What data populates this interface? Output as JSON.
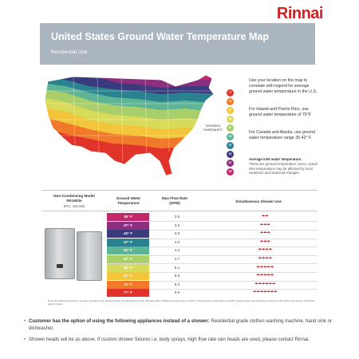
{
  "brand": "Rinnai",
  "header": {
    "title": "United States Ground Water Temperature Map",
    "subtitle": "Residential Use"
  },
  "map": {
    "legend_label": "DEGREES FAHRENHEIT",
    "legend": [
      {
        "value": "77",
        "color": "#e0342a"
      },
      {
        "value": "72",
        "color": "#f07a2a"
      },
      {
        "value": "67",
        "color": "#f2c53a"
      },
      {
        "value": "62",
        "color": "#d8db5a"
      },
      {
        "value": "57",
        "color": "#a8cf6a"
      },
      {
        "value": "52",
        "color": "#5db596"
      },
      {
        "value": "47",
        "color": "#2a8290"
      },
      {
        "value": "42",
        "color": "#3a3b7e"
      },
      {
        "value": "37",
        "color": "#8c2f7e"
      },
      {
        "value": "35",
        "color": "#c0286a"
      }
    ]
  },
  "info": {
    "p1": "Use your location on the map to correlate with legend for average ground water temperature in the U.S.",
    "p2": "For Hawaii and Puerto Rico, use ground water temperature of 75°F",
    "p3": "For Canada and Alaska, use ground water temperature range 35-42° F.",
    "p4_bold": "Average inlet water temperature.",
    "p4": "These are general temperature zones, actual inlet temperature may be affected by local variations and seasonal changes."
  },
  "table": {
    "model_header": "Non-Condensing Model RE160i/e",
    "model_sub": "BTU: 160,000",
    "col_temp": "Ground Water Temperature",
    "col_gpm": "Max Flow Rate (GPM)",
    "col_showers": "Simultaneous Shower Use",
    "rows": [
      {
        "temp": "35° F",
        "gpm": "3.5",
        "showers": 2,
        "color": "#c0286a"
      },
      {
        "temp": "37° F",
        "gpm": "3.6",
        "showers": 3,
        "color": "#8c2f7e"
      },
      {
        "temp": "42° F",
        "gpm": "3.8",
        "showers": 3,
        "color": "#3a3b7e"
      },
      {
        "temp": "47° F",
        "gpm": "4.0",
        "showers": 3,
        "color": "#2a8290"
      },
      {
        "temp": "52° F",
        "gpm": "4.3",
        "showers": 4,
        "color": "#5db596"
      },
      {
        "temp": "57° F",
        "gpm": "4.7",
        "showers": 4,
        "color": "#a8cf6a"
      },
      {
        "temp": "62° F",
        "gpm": "5.1",
        "showers": 5,
        "color": "#d8db5a"
      },
      {
        "temp": "67° F",
        "gpm": "5.6",
        "showers": 5,
        "color": "#f2c53a"
      },
      {
        "temp": "72° F",
        "gpm": "6.2",
        "showers": 6,
        "color": "#f07a2a"
      },
      {
        "temp": "77° F",
        "gpm": "6.9",
        "showers": 7,
        "color": "#e0342a"
      }
    ]
  },
  "note": "Note: Simultaneous shower use was rounded to the nearest whole number based on the following data. Tankless performance of 140°F mixed shower temperature at 104°F, ground water temperature as shown in the chart, and shower head flow rate of 2 gpm.",
  "bullets": [
    {
      "bold": "Customer has the option of using the following appliances instead of a shower:",
      "text": " Residential grade clothes washing machine, hand sink or dishwasher."
    },
    {
      "bold": "",
      "text": "Shower heads will be as above. If custom shower fixtures i.e. body sprays, high flow rate rain heads are used, please contact Rinnai."
    }
  ]
}
